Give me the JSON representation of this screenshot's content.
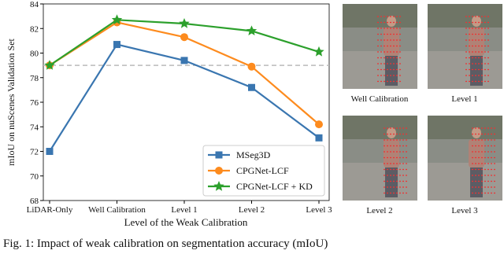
{
  "chart_data": {
    "type": "line",
    "y_label": "mIoU on nuScenes Validation Set",
    "x_label": "Level of the Weak Calibration",
    "categories": [
      "LiDAR-Only",
      "Well Calibration",
      "Level 1",
      "Level 2",
      "Level 3"
    ],
    "series": [
      {
        "name": "MSeg3D",
        "color": "#3a76b0",
        "marker": "square",
        "values": [
          72.0,
          80.7,
          79.4,
          77.2,
          73.1
        ]
      },
      {
        "name": "CPGNet-LCF",
        "color": "#fd8b1e",
        "marker": "circle",
        "values": [
          79.0,
          82.5,
          81.3,
          78.9,
          74.2
        ]
      },
      {
        "name": "CPGNet-LCF + KD",
        "color": "#2ca02c",
        "marker": "star",
        "values": [
          79.0,
          82.7,
          82.4,
          81.8,
          80.1
        ]
      }
    ],
    "reference_line": 79.0,
    "ylim": [
      68,
      84
    ],
    "yticks": [
      68,
      70,
      72,
      74,
      76,
      78,
      80,
      82,
      84
    ],
    "legend": "lower right"
  },
  "images": [
    "Well Calibration",
    "Level 1",
    "Level 2",
    "Level 3"
  ],
  "caption": "Fig. 1: Impact of weak calibration on segmentation accuracy (mIoU)"
}
